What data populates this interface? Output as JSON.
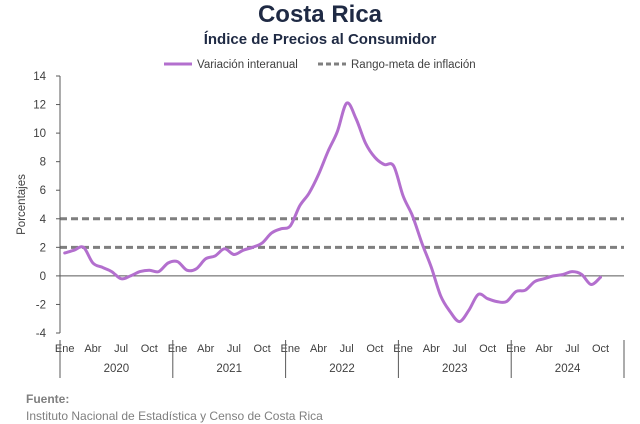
{
  "header": {
    "title": "Costa Rica",
    "subtitle": "Índice de Precios al Consumidor"
  },
  "footer": {
    "source_label": "Fuente:",
    "source_text": "Instituto Nacional de Estadística y Censo de Costa Rica"
  },
  "colors": {
    "title": "#1f2a44",
    "series": "#b36fce",
    "target": "#7f7f7f",
    "axis": "#595959",
    "text": "#404040",
    "source": "#7f7f7f"
  },
  "chart_data": {
    "type": "line",
    "title": "Índice de Precios al Consumidor",
    "ylabel": "Porcentajes",
    "xlabel": "",
    "ylim": [
      -4,
      14
    ],
    "yticks": [
      -4,
      -2,
      0,
      2,
      4,
      6,
      8,
      10,
      12,
      14
    ],
    "grid": false,
    "legend_position": "top",
    "month_ticks": [
      "Ene",
      "Abr",
      "Jul",
      "Oct"
    ],
    "years": [
      "2020",
      "2021",
      "2022",
      "2023",
      "2024"
    ],
    "series": [
      {
        "name": "Variación interanual",
        "kind": "line",
        "start": "2020-01",
        "values": [
          1.6,
          1.8,
          2.0,
          0.9,
          0.6,
          0.3,
          -0.2,
          0.0,
          0.3,
          0.4,
          0.3,
          0.9,
          1.0,
          0.4,
          0.5,
          1.2,
          1.4,
          1.9,
          1.5,
          1.8,
          2.0,
          2.3,
          3.0,
          3.3,
          3.5,
          4.9,
          5.8,
          7.1,
          8.7,
          10.1,
          12.1,
          11.0,
          9.3,
          8.3,
          7.8,
          7.7,
          5.6,
          4.2,
          2.3,
          0.6,
          -1.4,
          -2.5,
          -3.2,
          -2.4,
          -1.3,
          -1.6,
          -1.8,
          -1.8,
          -1.1,
          -1.0,
          -0.4,
          -0.2,
          0.0,
          0.1,
          0.3,
          0.1,
          -0.6,
          -0.1
        ]
      },
      {
        "name": "Rango-meta de inflación",
        "kind": "band",
        "lower": 2,
        "upper": 4
      }
    ]
  }
}
